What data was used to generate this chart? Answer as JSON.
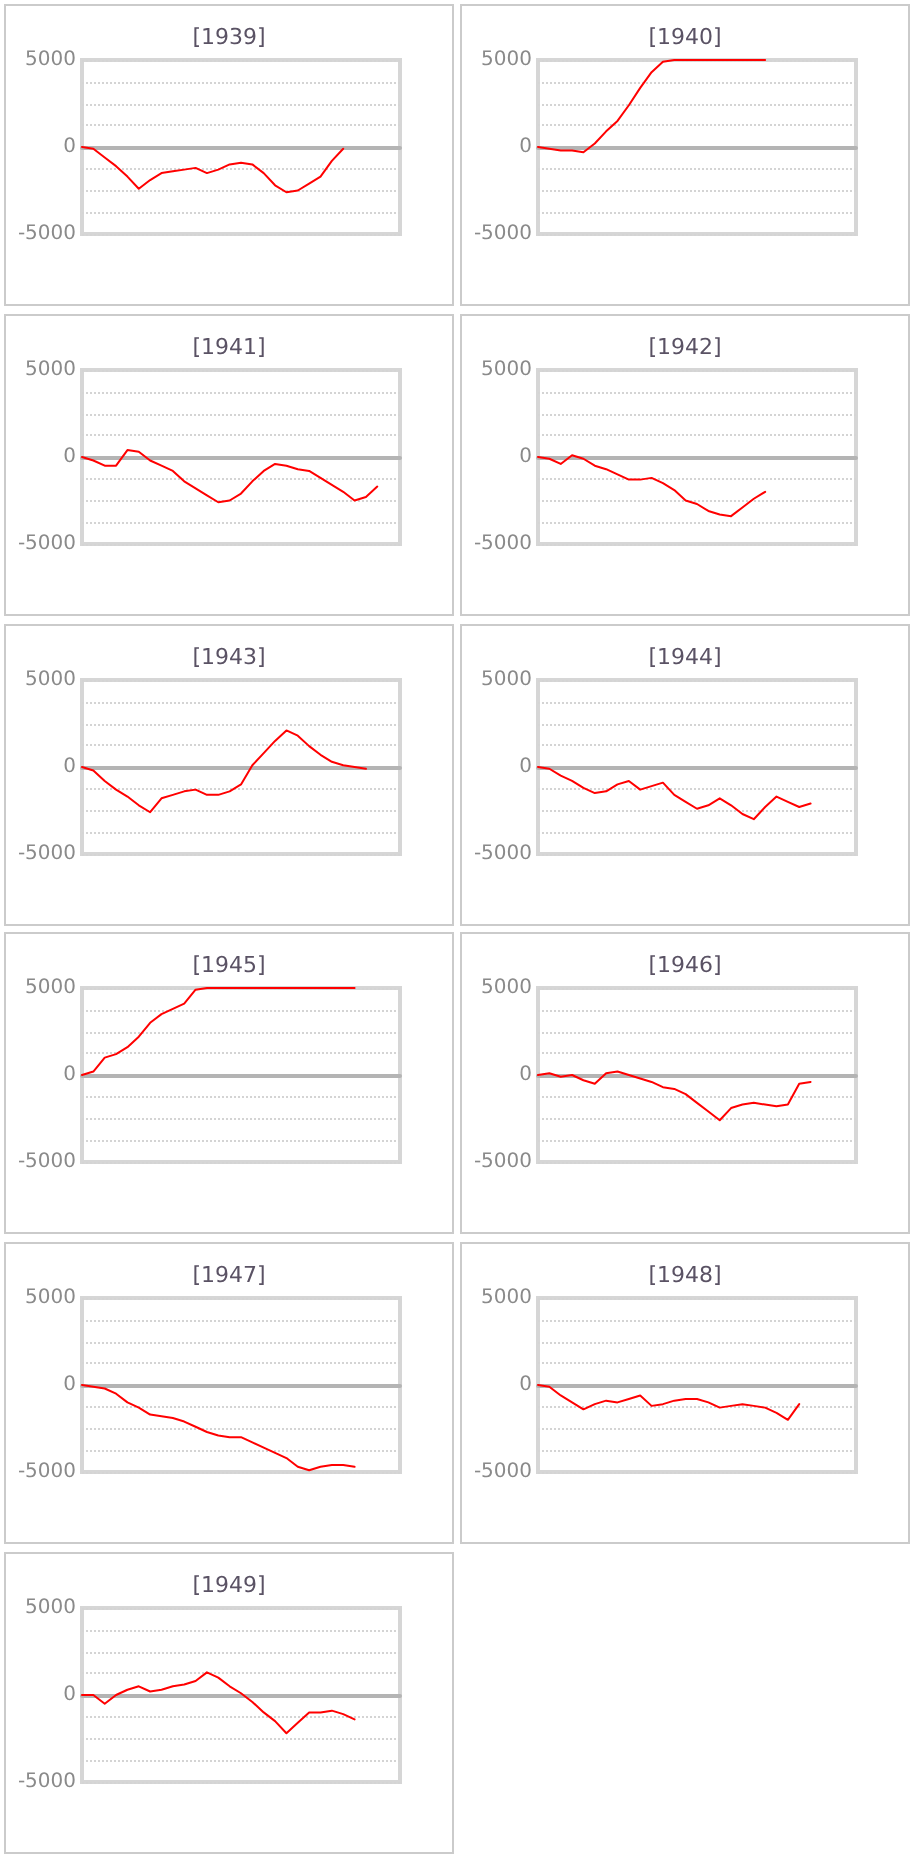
{
  "chart_data": [
    {
      "type": "line",
      "title": "[1939]",
      "categories": [
        null,
        null,
        null,
        null,
        null,
        null,
        null,
        null,
        null,
        null,
        null,
        null,
        null,
        null,
        null,
        null,
        null,
        null,
        null,
        null,
        null,
        null,
        null,
        null,
        null,
        null,
        null,
        null,
        null
      ],
      "values": [
        0,
        -100,
        -600,
        -1100,
        -1700,
        -2400,
        -1900,
        -1500,
        -1400,
        -1300,
        -1200,
        -1500,
        -1300,
        -1000,
        -900,
        -1000,
        -1500,
        -2200,
        -2600,
        -2500,
        -2100,
        -1700,
        -800,
        -100,
        null,
        null,
        null,
        null,
        null
      ],
      "color": "#ff0000",
      "ylim": [
        -5000,
        5000
      ],
      "yticks": [
        -5000,
        {
          "value": -3750,
          "label": null
        },
        {
          "value": -2500,
          "label": null
        },
        {
          "value": -1250,
          "label": null
        },
        0,
        {
          "value": 1250,
          "label": null
        },
        {
          "value": 2500,
          "label": null
        },
        {
          "value": 3750,
          "label": null
        },
        5000
      ],
      "grid": "y",
      "tick_labels": "y"
    },
    {
      "type": "line",
      "title": "[1940]",
      "categories": [
        null,
        null,
        null,
        null,
        null,
        null,
        null,
        null,
        null,
        null,
        null,
        null,
        null,
        null,
        null,
        null,
        null,
        null,
        null,
        null,
        null,
        null,
        null,
        null,
        null,
        null,
        null,
        null,
        null
      ],
      "values": [
        0,
        -100,
        -200,
        -200,
        -300,
        200,
        900,
        1500,
        2400,
        3400,
        4300,
        4900,
        5000,
        5000,
        5000,
        5000,
        5000,
        5000,
        5000,
        5000,
        5000,
        null,
        null,
        null,
        null,
        null,
        null,
        null,
        null
      ],
      "color": "#ff0000",
      "ylim": [
        -5000,
        5000
      ],
      "yticks": [
        -5000,
        {
          "value": -3750,
          "label": null
        },
        {
          "value": -2500,
          "label": null
        },
        {
          "value": -1250,
          "label": null
        },
        0,
        {
          "value": 1250,
          "label": null
        },
        {
          "value": 2500,
          "label": null
        },
        {
          "value": 3750,
          "label": null
        },
        5000
      ],
      "grid": "y",
      "tick_labels": "y"
    },
    {
      "type": "line",
      "title": "[1941]",
      "categories": [
        null,
        null,
        null,
        null,
        null,
        null,
        null,
        null,
        null,
        null,
        null,
        null,
        null,
        null,
        null,
        null,
        null,
        null,
        null,
        null,
        null,
        null,
        null,
        null,
        null,
        null,
        null,
        null,
        null
      ],
      "values": [
        0,
        -200,
        -500,
        -500,
        400,
        300,
        -200,
        -500,
        -800,
        -1400,
        -1800,
        -2200,
        -2600,
        -2500,
        -2100,
        -1400,
        -800,
        -400,
        -500,
        -700,
        -800,
        -1200,
        -1600,
        -2000,
        -2500,
        -2300,
        -1700,
        null,
        null
      ],
      "color": "#ff0000",
      "ylim": [
        -5000,
        5000
      ],
      "yticks": [
        -5000,
        {
          "value": -3750,
          "label": null
        },
        {
          "value": -2500,
          "label": null
        },
        {
          "value": -1250,
          "label": null
        },
        0,
        {
          "value": 1250,
          "label": null
        },
        {
          "value": 2500,
          "label": null
        },
        {
          "value": 3750,
          "label": null
        },
        5000
      ],
      "grid": "y",
      "tick_labels": "y"
    },
    {
      "type": "line",
      "title": "[1942]",
      "categories": [
        null,
        null,
        null,
        null,
        null,
        null,
        null,
        null,
        null,
        null,
        null,
        null,
        null,
        null,
        null,
        null,
        null,
        null,
        null,
        null,
        null,
        null,
        null,
        null,
        null,
        null,
        null,
        null,
        null
      ],
      "values": [
        0,
        -100,
        -400,
        100,
        -100,
        -500,
        -700,
        -1000,
        -1300,
        -1300,
        -1200,
        -1500,
        -1900,
        -2500,
        -2700,
        -3100,
        -3300,
        -3400,
        -2900,
        -2400,
        -2000,
        null,
        null,
        null,
        null,
        null,
        null,
        null,
        null
      ],
      "color": "#ff0000",
      "ylim": [
        -5000,
        5000
      ],
      "yticks": [
        -5000,
        {
          "value": -3750,
          "label": null
        },
        {
          "value": -2500,
          "label": null
        },
        {
          "value": -1250,
          "label": null
        },
        0,
        {
          "value": 1250,
          "label": null
        },
        {
          "value": 2500,
          "label": null
        },
        {
          "value": 3750,
          "label": null
        },
        5000
      ],
      "grid": "y",
      "tick_labels": "y"
    },
    {
      "type": "line",
      "title": "[1943]",
      "categories": [
        null,
        null,
        null,
        null,
        null,
        null,
        null,
        null,
        null,
        null,
        null,
        null,
        null,
        null,
        null,
        null,
        null,
        null,
        null,
        null,
        null,
        null,
        null,
        null,
        null,
        null,
        null,
        null,
        null
      ],
      "values": [
        0,
        -200,
        -800,
        -1300,
        -1700,
        -2200,
        -2600,
        -1800,
        -1600,
        -1400,
        -1300,
        -1600,
        -1600,
        -1400,
        -1000,
        100,
        800,
        1500,
        2100,
        1800,
        1200,
        700,
        300,
        100,
        0,
        -100,
        null,
        null,
        null
      ],
      "color": "#ff0000",
      "ylim": [
        -5000,
        5000
      ],
      "yticks": [
        -5000,
        {
          "value": -3750,
          "label": null
        },
        {
          "value": -2500,
          "label": null
        },
        {
          "value": -1250,
          "label": null
        },
        0,
        {
          "value": 1250,
          "label": null
        },
        {
          "value": 2500,
          "label": null
        },
        {
          "value": 3750,
          "label": null
        },
        5000
      ],
      "grid": "y",
      "tick_labels": "y"
    },
    {
      "type": "line",
      "title": "[1944]",
      "categories": [
        null,
        null,
        null,
        null,
        null,
        null,
        null,
        null,
        null,
        null,
        null,
        null,
        null,
        null,
        null,
        null,
        null,
        null,
        null,
        null,
        null,
        null,
        null,
        null,
        null,
        null,
        null,
        null,
        null
      ],
      "values": [
        0,
        -100,
        -500,
        -800,
        -1200,
        -1500,
        -1400,
        -1000,
        -800,
        -1300,
        -1100,
        -900,
        -1600,
        -2000,
        -2400,
        -2200,
        -1800,
        -2200,
        -2700,
        -3000,
        -2300,
        -1700,
        -2000,
        -2300,
        -2100,
        null,
        null,
        null,
        null
      ],
      "color": "#ff0000",
      "ylim": [
        -5000,
        5000
      ],
      "yticks": [
        -5000,
        {
          "value": -3750,
          "label": null
        },
        {
          "value": -2500,
          "label": null
        },
        {
          "value": -1250,
          "label": null
        },
        0,
        {
          "value": 1250,
          "label": null
        },
        {
          "value": 2500,
          "label": null
        },
        {
          "value": 3750,
          "label": null
        },
        5000
      ],
      "grid": "y",
      "tick_labels": "y"
    },
    {
      "type": "line",
      "title": "[1945]",
      "categories": [
        null,
        null,
        null,
        null,
        null,
        null,
        null,
        null,
        null,
        null,
        null,
        null,
        null,
        null,
        null,
        null,
        null,
        null,
        null,
        null,
        null,
        null,
        null,
        null,
        null,
        null,
        null,
        null,
        null
      ],
      "values": [
        0,
        200,
        1000,
        1200,
        1600,
        2200,
        3000,
        3500,
        3800,
        4100,
        4900,
        5000,
        5000,
        5000,
        5000,
        5000,
        5000,
        5000,
        5000,
        5000,
        5000,
        5000,
        5000,
        5000,
        5000,
        null,
        null,
        null,
        null
      ],
      "color": "#ff0000",
      "ylim": [
        -5000,
        5000
      ],
      "yticks": [
        -5000,
        {
          "value": -3750,
          "label": null
        },
        {
          "value": -2500,
          "label": null
        },
        {
          "value": -1250,
          "label": null
        },
        0,
        {
          "value": 1250,
          "label": null
        },
        {
          "value": 2500,
          "label": null
        },
        {
          "value": 3750,
          "label": null
        },
        5000
      ],
      "grid": "y",
      "tick_labels": "y"
    },
    {
      "type": "line",
      "title": "[1946]",
      "categories": [
        null,
        null,
        null,
        null,
        null,
        null,
        null,
        null,
        null,
        null,
        null,
        null,
        null,
        null,
        null,
        null,
        null,
        null,
        null,
        null,
        null,
        null,
        null,
        null,
        null,
        null,
        null,
        null,
        null
      ],
      "values": [
        0,
        100,
        -100,
        0,
        -300,
        -500,
        100,
        200,
        0,
        -200,
        -400,
        -700,
        -800,
        -1100,
        -1600,
        -2100,
        -2600,
        -1900,
        -1700,
        -1600,
        -1700,
        -1800,
        -1700,
        -500,
        -400,
        null,
        null,
        null,
        null
      ],
      "color": "#ff0000",
      "ylim": [
        -5000,
        5000
      ],
      "yticks": [
        -5000,
        {
          "value": -3750,
          "label": null
        },
        {
          "value": -2500,
          "label": null
        },
        {
          "value": -1250,
          "label": null
        },
        0,
        {
          "value": 1250,
          "label": null
        },
        {
          "value": 2500,
          "label": null
        },
        {
          "value": 3750,
          "label": null
        },
        5000
      ],
      "grid": "y",
      "tick_labels": "y"
    },
    {
      "type": "line",
      "title": "[1947]",
      "categories": [
        null,
        null,
        null,
        null,
        null,
        null,
        null,
        null,
        null,
        null,
        null,
        null,
        null,
        null,
        null,
        null,
        null,
        null,
        null,
        null,
        null,
        null,
        null,
        null,
        null,
        null,
        null,
        null,
        null
      ],
      "values": [
        0,
        -100,
        -200,
        -500,
        -1000,
        -1300,
        -1700,
        -1800,
        -1900,
        -2100,
        -2400,
        -2700,
        -2900,
        -3000,
        -3000,
        -3300,
        -3600,
        -3900,
        -4200,
        -4700,
        -4900,
        -4700,
        -4600,
        -4600,
        -4700,
        null,
        null,
        null,
        null
      ],
      "color": "#ff0000",
      "ylim": [
        -5000,
        5000
      ],
      "yticks": [
        -5000,
        {
          "value": -3750,
          "label": null
        },
        {
          "value": -2500,
          "label": null
        },
        {
          "value": -1250,
          "label": null
        },
        0,
        {
          "value": 1250,
          "label": null
        },
        {
          "value": 2500,
          "label": null
        },
        {
          "value": 3750,
          "label": null
        },
        5000
      ],
      "grid": "y",
      "tick_labels": "y"
    },
    {
      "type": "line",
      "title": "[1948]",
      "categories": [
        null,
        null,
        null,
        null,
        null,
        null,
        null,
        null,
        null,
        null,
        null,
        null,
        null,
        null,
        null,
        null,
        null,
        null,
        null,
        null,
        null,
        null,
        null,
        null,
        null,
        null,
        null,
        null,
        null
      ],
      "values": [
        0,
        -100,
        -600,
        -1000,
        -1400,
        -1100,
        -900,
        -1000,
        -800,
        -600,
        -1200,
        -1100,
        -900,
        -800,
        -800,
        -1000,
        -1300,
        -1200,
        -1100,
        -1200,
        -1300,
        -1600,
        -2000,
        -1100,
        null,
        null,
        null,
        null,
        null
      ],
      "color": "#ff0000",
      "ylim": [
        -5000,
        5000
      ],
      "yticks": [
        -5000,
        {
          "value": -3750,
          "label": null
        },
        {
          "value": -2500,
          "label": null
        },
        {
          "value": -1250,
          "label": null
        },
        0,
        {
          "value": 1250,
          "label": null
        },
        {
          "value": 2500,
          "label": null
        },
        {
          "value": 3750,
          "label": null
        },
        5000
      ],
      "grid": "y",
      "tick_labels": "y"
    },
    {
      "type": "line",
      "title": "[1949]",
      "categories": [
        null,
        null,
        null,
        null,
        null,
        null,
        null,
        null,
        null,
        null,
        null,
        null,
        null,
        null,
        null,
        null,
        null,
        null,
        null,
        null,
        null,
        null,
        null,
        null,
        null,
        null,
        null,
        null,
        null
      ],
      "values": [
        0,
        0,
        -500,
        0,
        300,
        500,
        200,
        300,
        500,
        600,
        800,
        1300,
        1000,
        500,
        100,
        -400,
        -1000,
        -1500,
        -2200,
        -1600,
        -1000,
        -1000,
        -900,
        -1100,
        -1400,
        null,
        null,
        null,
        null
      ],
      "color": "#ff0000",
      "ylim": [
        -5000,
        5000
      ],
      "yticks": [
        -5000,
        {
          "value": -3750,
          "label": null
        },
        {
          "value": -2500,
          "label": null
        },
        {
          "value": -1250,
          "label": null
        },
        0,
        {
          "value": 1250,
          "label": null
        },
        {
          "value": 2500,
          "label": null
        },
        {
          "value": 3750,
          "label": null
        },
        5000
      ],
      "grid": "y",
      "tick_labels": "y"
    }
  ]
}
